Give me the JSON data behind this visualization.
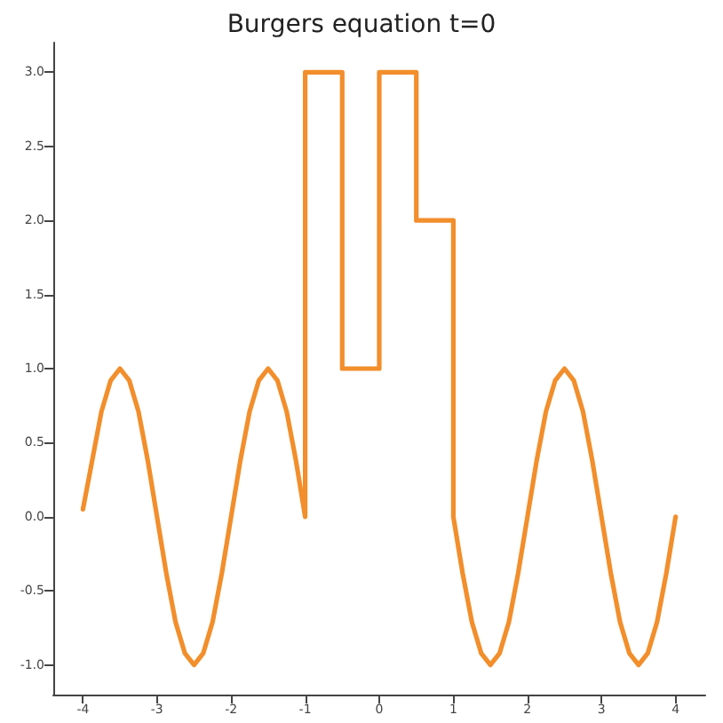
{
  "chart_data": {
    "type": "line",
    "title": "Burgers equation t=0",
    "x": [
      -4,
      -3.875,
      -3.75,
      -3.625,
      -3.5,
      -3.375,
      -3.25,
      -3.125,
      -3,
      -2.875,
      -2.75,
      -2.625,
      -2.5,
      -2.375,
      -2.25,
      -2.125,
      -2,
      -1.875,
      -1.75,
      -1.625,
      -1.5,
      -1.375,
      -1.25,
      -1.125,
      -1,
      -1,
      -0.5,
      -0.5,
      0,
      0,
      0.5,
      0.5,
      1,
      1,
      1.125,
      1.25,
      1.375,
      1.5,
      1.625,
      1.75,
      1.875,
      2,
      2.125,
      2.25,
      2.375,
      2.5,
      2.625,
      2.75,
      2.875,
      3,
      3.125,
      3.25,
      3.375,
      3.5,
      3.625,
      3.75,
      3.875,
      4
    ],
    "series": [
      {
        "color": "#f28e2b",
        "values": [
          0.05,
          0.38,
          0.71,
          0.92,
          1,
          0.92,
          0.71,
          0.38,
          0,
          -0.38,
          -0.71,
          -0.92,
          -1,
          -0.92,
          -0.71,
          -0.38,
          0,
          0.38,
          0.71,
          0.92,
          1,
          0.92,
          0.71,
          0.38,
          0,
          3,
          3,
          1,
          1,
          3,
          3,
          2,
          2,
          0,
          -0.38,
          -0.71,
          -0.92,
          -1,
          -0.92,
          -0.71,
          -0.38,
          0,
          0.38,
          0.71,
          0.92,
          1,
          0.92,
          0.71,
          0.38,
          0,
          -0.38,
          -0.71,
          -0.92,
          -1,
          -0.92,
          -0.71,
          -0.38,
          0
        ]
      }
    ],
    "xlim": [
      -4.4,
      4.4
    ],
    "xticks": [
      -4,
      -3,
      -2,
      -1,
      0,
      1,
      2,
      3,
      4
    ],
    "ylim": [
      -1.2,
      3.2
    ],
    "yticks": [
      {
        "value": -1,
        "label": "-1.0"
      },
      {
        "value": -0.5,
        "label": "-0.5"
      },
      {
        "value": 0,
        "label": "0.0"
      },
      {
        "value": 0.5,
        "label": "0.5"
      },
      {
        "value": 1,
        "label": "1.0"
      },
      {
        "value": 1.5,
        "label": "1.5"
      },
      {
        "value": 2,
        "label": "2.0"
      },
      {
        "value": 2.5,
        "label": "2.5"
      },
      {
        "value": 3,
        "label": "3.0"
      }
    ],
    "grid": false,
    "marker": "none",
    "line_style": "solid"
  }
}
